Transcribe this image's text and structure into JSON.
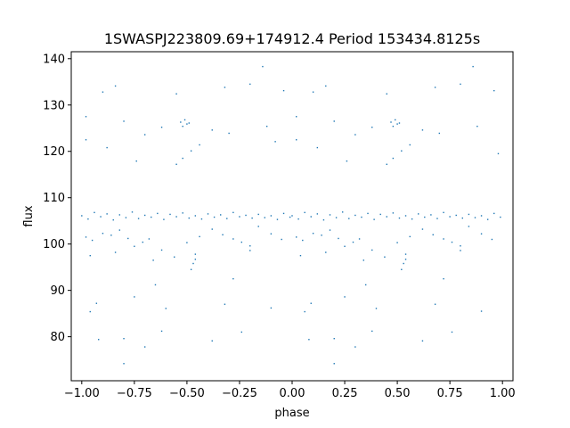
{
  "chart_data": {
    "type": "scatter",
    "title": "1SWASPJ223809.69+174912.4 Period 153434.8125s",
    "xlabel": "phase",
    "ylabel": "flux",
    "xlim": [
      -1.05,
      1.05
    ],
    "ylim": [
      70.5,
      141.5
    ],
    "x_ticks": [
      -1.0,
      -0.75,
      -0.5,
      -0.25,
      0.0,
      0.25,
      0.5,
      0.75,
      1.0
    ],
    "x_tick_labels": [
      "−1.00",
      "−0.75",
      "−0.50",
      "−0.25",
      "0.00",
      "0.25",
      "0.50",
      "0.75",
      "1.00"
    ],
    "y_ticks": [
      80,
      90,
      100,
      110,
      120,
      130,
      140
    ],
    "y_tick_labels": [
      "80",
      "90",
      "100",
      "110",
      "120",
      "130",
      "140"
    ],
    "grid": false,
    "marker_color": "#1f77b4",
    "series": [
      {
        "points": [
          [
            -1.0,
            106.1
          ],
          [
            -0.97,
            105.4
          ],
          [
            -0.94,
            106.8
          ],
          [
            -0.91,
            105.9
          ],
          [
            -0.88,
            106.5
          ],
          [
            -0.85,
            105.2
          ],
          [
            -0.82,
            106.3
          ],
          [
            -0.79,
            105.7
          ],
          [
            -0.76,
            106.9
          ],
          [
            -0.73,
            105.5
          ],
          [
            -0.7,
            106.2
          ],
          [
            -0.67,
            105.8
          ],
          [
            -0.64,
            106.6
          ],
          [
            -0.61,
            105.3
          ],
          [
            -0.58,
            106.4
          ],
          [
            -0.55,
            105.9
          ],
          [
            -0.52,
            106.7
          ],
          [
            -0.49,
            105.6
          ],
          [
            -0.46,
            106.1
          ],
          [
            -0.43,
            105.4
          ],
          [
            -0.4,
            106.5
          ],
          [
            -0.37,
            105.8
          ],
          [
            -0.34,
            106.3
          ],
          [
            -0.31,
            105.5
          ],
          [
            -0.28,
            106.8
          ],
          [
            -0.25,
            105.9
          ],
          [
            -0.22,
            106.2
          ],
          [
            -0.19,
            105.6
          ],
          [
            -0.16,
            106.4
          ],
          [
            -0.13,
            105.7
          ],
          [
            -0.1,
            106.1
          ],
          [
            -0.07,
            105.3
          ],
          [
            -0.04,
            106.6
          ],
          [
            -0.01,
            105.8
          ],
          [
            0.0,
            106.1
          ],
          [
            0.03,
            105.4
          ],
          [
            0.06,
            106.8
          ],
          [
            0.09,
            105.9
          ],
          [
            0.12,
            106.5
          ],
          [
            0.15,
            105.2
          ],
          [
            0.18,
            106.3
          ],
          [
            0.21,
            105.7
          ],
          [
            0.24,
            106.9
          ],
          [
            0.27,
            105.5
          ],
          [
            0.3,
            106.2
          ],
          [
            0.33,
            105.8
          ],
          [
            0.36,
            106.6
          ],
          [
            0.39,
            105.3
          ],
          [
            0.42,
            106.4
          ],
          [
            0.45,
            105.9
          ],
          [
            0.48,
            106.7
          ],
          [
            0.51,
            105.6
          ],
          [
            0.54,
            106.1
          ],
          [
            0.57,
            105.4
          ],
          [
            0.6,
            106.5
          ],
          [
            0.63,
            105.8
          ],
          [
            0.66,
            106.3
          ],
          [
            0.69,
            105.5
          ],
          [
            0.72,
            106.8
          ],
          [
            0.75,
            105.9
          ],
          [
            0.78,
            106.2
          ],
          [
            0.81,
            105.6
          ],
          [
            0.84,
            106.4
          ],
          [
            0.87,
            105.7
          ],
          [
            0.9,
            106.1
          ],
          [
            0.93,
            105.3
          ],
          [
            0.96,
            106.6
          ],
          [
            0.99,
            105.8
          ],
          [
            -0.98,
            101.5
          ],
          [
            -0.95,
            100.8
          ],
          [
            -0.9,
            102.3
          ],
          [
            -0.86,
            101.9
          ],
          [
            -0.82,
            103.0
          ],
          [
            -0.78,
            101.2
          ],
          [
            -0.75,
            99.5
          ],
          [
            -0.71,
            100.4
          ],
          [
            -0.68,
            101.1
          ],
          [
            -0.62,
            98.7
          ],
          [
            -0.56,
            97.2
          ],
          [
            -0.5,
            100.3
          ],
          [
            -0.44,
            101.6
          ],
          [
            -0.38,
            103.2
          ],
          [
            -0.33,
            102.0
          ],
          [
            -0.28,
            101.1
          ],
          [
            -0.24,
            100.4
          ],
          [
            -0.2,
            99.6
          ],
          [
            -0.16,
            103.8
          ],
          [
            -0.1,
            102.2
          ],
          [
            -0.05,
            101.0
          ],
          [
            0.02,
            101.5
          ],
          [
            0.05,
            100.8
          ],
          [
            0.1,
            102.3
          ],
          [
            0.14,
            101.9
          ],
          [
            0.18,
            103.0
          ],
          [
            0.22,
            101.2
          ],
          [
            0.25,
            99.5
          ],
          [
            0.29,
            100.4
          ],
          [
            0.32,
            101.1
          ],
          [
            0.38,
            98.7
          ],
          [
            0.44,
            97.2
          ],
          [
            0.5,
            100.3
          ],
          [
            0.56,
            101.6
          ],
          [
            0.62,
            103.2
          ],
          [
            0.67,
            102.0
          ],
          [
            0.72,
            101.1
          ],
          [
            0.76,
            100.4
          ],
          [
            0.8,
            99.6
          ],
          [
            0.84,
            103.8
          ],
          [
            0.9,
            102.2
          ],
          [
            0.95,
            101.0
          ],
          [
            -0.96,
            97.5
          ],
          [
            -0.84,
            98.2
          ],
          [
            -0.66,
            96.5
          ],
          [
            -0.46,
            97.8
          ],
          [
            -0.2,
            98.6
          ],
          [
            0.04,
            97.5
          ],
          [
            0.16,
            98.2
          ],
          [
            0.34,
            96.5
          ],
          [
            0.54,
            97.8
          ],
          [
            0.8,
            98.6
          ],
          [
            -0.48,
            94.5
          ],
          [
            -0.47,
            95.8
          ],
          [
            -0.46,
            96.7
          ],
          [
            0.52,
            94.5
          ],
          [
            0.53,
            95.8
          ],
          [
            0.54,
            96.7
          ],
          [
            -0.53,
            126.3
          ],
          [
            -0.52,
            125.4
          ],
          [
            -0.51,
            126.8
          ],
          [
            -0.5,
            125.9
          ],
          [
            -0.49,
            126.1
          ],
          [
            0.47,
            126.3
          ],
          [
            0.48,
            125.4
          ],
          [
            0.49,
            126.8
          ],
          [
            0.5,
            125.9
          ],
          [
            0.51,
            126.1
          ],
          [
            -0.55,
            117.2
          ],
          [
            -0.52,
            118.5
          ],
          [
            -0.48,
            120.1
          ],
          [
            -0.44,
            121.4
          ],
          [
            0.45,
            117.2
          ],
          [
            0.48,
            118.5
          ],
          [
            0.52,
            120.1
          ],
          [
            0.56,
            121.4
          ],
          [
            -0.98,
            127.5
          ],
          [
            -0.9,
            132.8
          ],
          [
            -0.84,
            134.1
          ],
          [
            -0.8,
            126.5
          ],
          [
            -0.7,
            123.6
          ],
          [
            -0.62,
            125.2
          ],
          [
            -0.55,
            132.4
          ],
          [
            -0.38,
            124.6
          ],
          [
            -0.32,
            133.8
          ],
          [
            -0.2,
            134.5
          ],
          [
            -0.12,
            125.4
          ],
          [
            -0.04,
            133.1
          ],
          [
            0.02,
            127.5
          ],
          [
            0.1,
            132.8
          ],
          [
            0.16,
            134.1
          ],
          [
            0.2,
            126.5
          ],
          [
            0.3,
            123.6
          ],
          [
            0.38,
            125.2
          ],
          [
            0.45,
            132.4
          ],
          [
            0.62,
            124.6
          ],
          [
            0.68,
            133.8
          ],
          [
            0.8,
            134.5
          ],
          [
            0.88,
            125.4
          ],
          [
            0.96,
            133.1
          ],
          [
            -0.98,
            122.5
          ],
          [
            -0.88,
            120.8
          ],
          [
            -0.74,
            117.9
          ],
          [
            -0.3,
            123.9
          ],
          [
            -0.08,
            122.1
          ],
          [
            0.02,
            122.5
          ],
          [
            0.12,
            120.8
          ],
          [
            0.26,
            117.9
          ],
          [
            0.7,
            123.9
          ],
          [
            0.98,
            119.5
          ],
          [
            -0.96,
            85.4
          ],
          [
            -0.93,
            87.2
          ],
          [
            -0.75,
            88.6
          ],
          [
            -0.6,
            86.1
          ],
          [
            -0.32,
            87.0
          ],
          [
            -0.1,
            86.2
          ],
          [
            0.06,
            85.4
          ],
          [
            0.09,
            87.2
          ],
          [
            0.25,
            88.6
          ],
          [
            0.4,
            86.1
          ],
          [
            0.68,
            87.0
          ],
          [
            0.9,
            85.5
          ],
          [
            -0.92,
            79.4
          ],
          [
            -0.8,
            79.6
          ],
          [
            -0.7,
            77.8
          ],
          [
            -0.62,
            81.2
          ],
          [
            -0.38,
            79.1
          ],
          [
            -0.24,
            81.0
          ],
          [
            0.08,
            79.4
          ],
          [
            0.2,
            79.6
          ],
          [
            0.3,
            77.8
          ],
          [
            0.38,
            81.2
          ],
          [
            0.62,
            79.1
          ],
          [
            0.76,
            81.0
          ],
          [
            -0.8,
            74.2
          ],
          [
            0.2,
            74.2
          ],
          [
            -0.65,
            91.2
          ],
          [
            -0.28,
            92.5
          ],
          [
            0.35,
            91.2
          ],
          [
            0.72,
            92.5
          ],
          [
            -0.14,
            138.3
          ],
          [
            0.86,
            138.3
          ]
        ]
      }
    ]
  }
}
